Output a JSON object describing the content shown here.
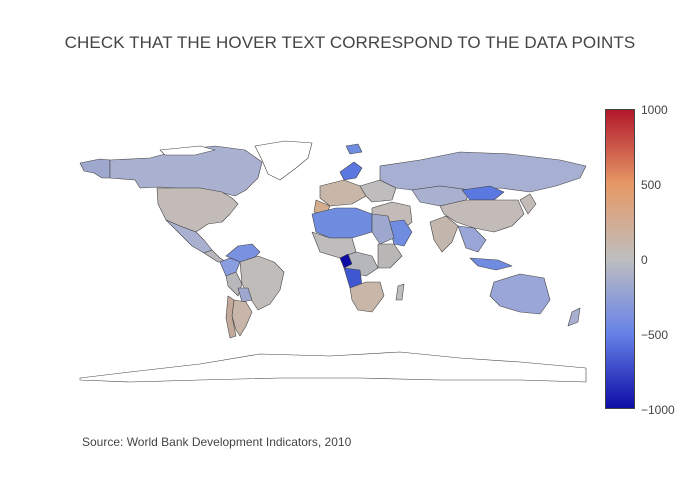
{
  "title": "CHECK THAT THE HOVER TEXT CORRESPOND TO THE DATA POINTS",
  "source": "Source: World Bank Development Indicators, 2010",
  "colorbar": {
    "ticks": [
      "1000",
      "500",
      "0",
      "−500",
      "−1000"
    ],
    "range": [
      -1000,
      1000
    ],
    "colors": [
      "#0d0da6",
      "#6682e8",
      "#bebebe",
      "#e69966",
      "#b2182b"
    ]
  },
  "map_data": {
    "type": "choropleth",
    "projection": "equirectangular",
    "colorscale_stops": [
      {
        "value": -1000,
        "color": "#0d0da6"
      },
      {
        "value": -500,
        "color": "#6682e8"
      },
      {
        "value": 0,
        "color": "#bebebe"
      },
      {
        "value": 500,
        "color": "#e69966"
      },
      {
        "value": 1000,
        "color": "#b2182b"
      }
    ]
  }
}
